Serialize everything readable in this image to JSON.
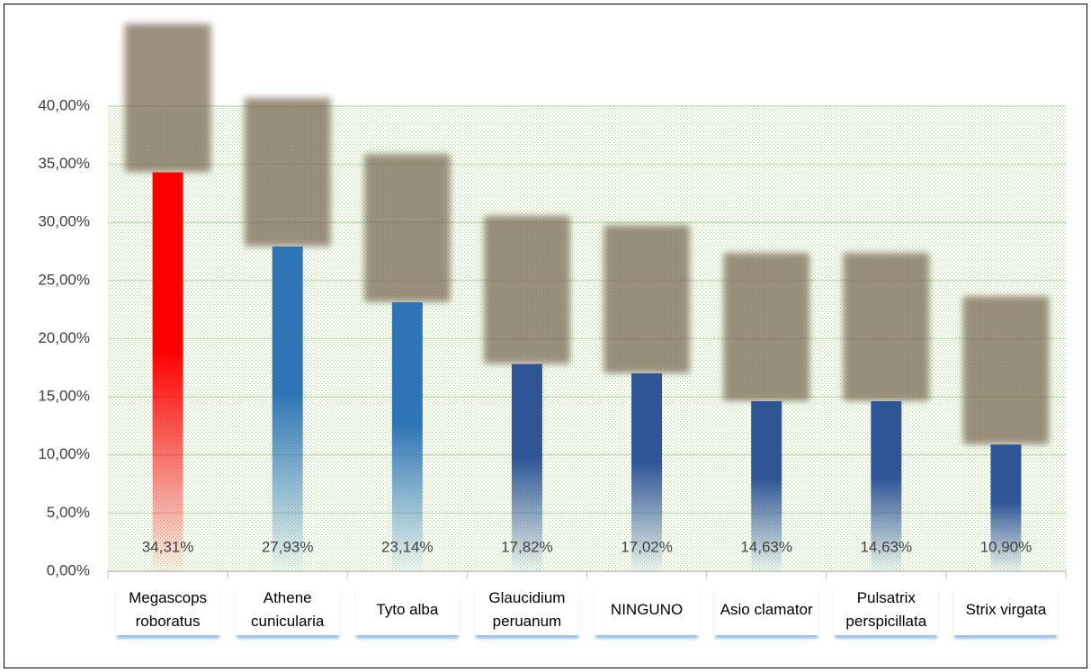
{
  "chart_data": {
    "type": "bar",
    "categories": [
      "Megascops roboratus",
      "Athene cunicularia",
      "Tyto alba",
      "Glaucidium peruanum",
      "NINGUNO",
      "Asio clamator",
      "Pulsatrix perspicillata",
      "Strix virgata"
    ],
    "values": [
      34.31,
      27.93,
      23.14,
      17.82,
      17.02,
      14.63,
      14.63,
      10.9
    ],
    "value_labels": [
      "34,31%",
      "27,93%",
      "23,14%",
      "17,82%",
      "17,02%",
      "14,63%",
      "14,63%",
      "10,90%"
    ],
    "colors": [
      "#ff0000",
      "#2e75b6",
      "#2e75b6",
      "#2f5597",
      "#2f5597",
      "#2f5597",
      "#2f5597",
      "#2f5597"
    ],
    "ylim": [
      0,
      40
    ],
    "yticks": [
      {
        "value": 0,
        "label": "0,00%"
      },
      {
        "value": 5,
        "label": "5,00%"
      },
      {
        "value": 10,
        "label": "10,00%"
      },
      {
        "value": 15,
        "label": "15,00%"
      },
      {
        "value": 20,
        "label": "20,00%"
      },
      {
        "value": 25,
        "label": "25,00%"
      },
      {
        "value": 30,
        "label": "30,00%"
      },
      {
        "value": 35,
        "label": "35,00%"
      },
      {
        "value": 40,
        "label": "40,00%"
      }
    ],
    "grid": true
  }
}
